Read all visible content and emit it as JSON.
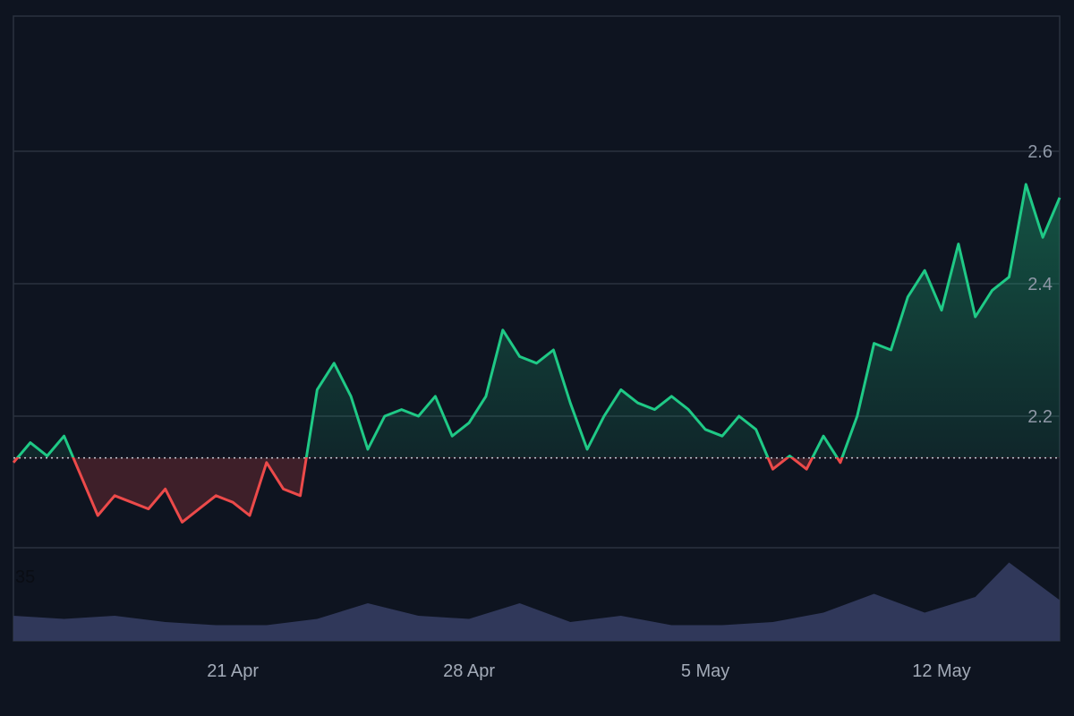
{
  "chart_data": {
    "type": "area",
    "title": "",
    "baseline": 2.137,
    "ylim": [
      2.0,
      2.8
    ],
    "y_ticks": [
      2.2,
      2.4,
      2.6
    ],
    "y_tick_labels": [
      "2.2",
      "2.4",
      "2.6"
    ],
    "x_tick_labels": [
      "21 Apr",
      "28 Apr",
      "5 May",
      "12 May"
    ],
    "x_range": [
      "2025-04-14T12:00",
      "2025-05-15T12:00"
    ],
    "x_ticks": [
      "2025-04-21",
      "2025-04-28",
      "2025-05-05",
      "2025-05-12"
    ],
    "grid": true,
    "colors": {
      "up": "#1fc986",
      "down": "#ec4a4a",
      "volume": "#30385a",
      "grid": "#2a313f",
      "baseline": "#c8ccd4"
    },
    "price": {
      "x": [
        "2025-04-14T12:00",
        "2025-04-15T00:00",
        "2025-04-15T12:00",
        "2025-04-16T00:00",
        "2025-04-16T12:00",
        "2025-04-17T00:00",
        "2025-04-17T12:00",
        "2025-04-18T00:00",
        "2025-04-18T12:00",
        "2025-04-19T00:00",
        "2025-04-19T12:00",
        "2025-04-20T00:00",
        "2025-04-20T12:00",
        "2025-04-21T00:00",
        "2025-04-21T12:00",
        "2025-04-22T00:00",
        "2025-04-22T12:00",
        "2025-04-23T00:00",
        "2025-04-23T12:00",
        "2025-04-24T00:00",
        "2025-04-24T12:00",
        "2025-04-25T00:00",
        "2025-04-25T12:00",
        "2025-04-26T00:00",
        "2025-04-26T12:00",
        "2025-04-27T00:00",
        "2025-04-27T12:00",
        "2025-04-28T00:00",
        "2025-04-28T12:00",
        "2025-04-29T00:00",
        "2025-04-29T12:00",
        "2025-04-30T00:00",
        "2025-04-30T12:00",
        "2025-05-01T00:00",
        "2025-05-01T12:00",
        "2025-05-02T00:00",
        "2025-05-02T12:00",
        "2025-05-03T00:00",
        "2025-05-03T12:00",
        "2025-05-04T00:00",
        "2025-05-04T12:00",
        "2025-05-05T00:00",
        "2025-05-05T12:00",
        "2025-05-06T00:00",
        "2025-05-06T12:00",
        "2025-05-07T00:00",
        "2025-05-07T12:00",
        "2025-05-08T00:00",
        "2025-05-08T12:00",
        "2025-05-09T00:00",
        "2025-05-09T12:00",
        "2025-05-10T00:00",
        "2025-05-10T12:00",
        "2025-05-11T00:00",
        "2025-05-11T12:00",
        "2025-05-12T00:00",
        "2025-05-12T12:00",
        "2025-05-13T00:00",
        "2025-05-13T12:00",
        "2025-05-14T00:00",
        "2025-05-14T12:00",
        "2025-05-15T00:00",
        "2025-05-15T12:00"
      ],
      "y": [
        2.13,
        2.16,
        2.14,
        2.17,
        2.11,
        2.05,
        2.08,
        2.07,
        2.06,
        2.09,
        2.04,
        2.06,
        2.08,
        2.07,
        2.05,
        2.13,
        2.09,
        2.08,
        2.24,
        2.28,
        2.23,
        2.15,
        2.2,
        2.21,
        2.2,
        2.23,
        2.17,
        2.19,
        2.23,
        2.33,
        2.29,
        2.28,
        2.3,
        2.22,
        2.15,
        2.2,
        2.24,
        2.22,
        2.21,
        2.23,
        2.21,
        2.18,
        2.17,
        2.2,
        2.18,
        2.12,
        2.14,
        2.12,
        2.17,
        2.13,
        2.2,
        2.31,
        2.3,
        2.38,
        2.42,
        2.36,
        2.46,
        2.35,
        2.39,
        2.41,
        2.55,
        2.47,
        2.53
      ]
    },
    "volume": {
      "label": "35",
      "x": [
        "2025-04-14T12:00",
        "2025-04-16T00:00",
        "2025-04-17T12:00",
        "2025-04-19T00:00",
        "2025-04-20T12:00",
        "2025-04-22T00:00",
        "2025-04-23T12:00",
        "2025-04-25T00:00",
        "2025-04-26T12:00",
        "2025-04-28T00:00",
        "2025-04-29T12:00",
        "2025-05-01T00:00",
        "2025-05-02T12:00",
        "2025-05-04T00:00",
        "2025-05-05T12:00",
        "2025-05-07T00:00",
        "2025-05-08T12:00",
        "2025-05-10T00:00",
        "2025-05-11T12:00",
        "2025-05-13T00:00",
        "2025-05-14T00:00",
        "2025-05-15T12:00"
      ],
      "y": [
        8,
        7,
        8,
        6,
        5,
        5,
        7,
        12,
        8,
        7,
        12,
        6,
        8,
        5,
        5,
        6,
        9,
        15,
        9,
        14,
        25,
        13
      ]
    }
  }
}
